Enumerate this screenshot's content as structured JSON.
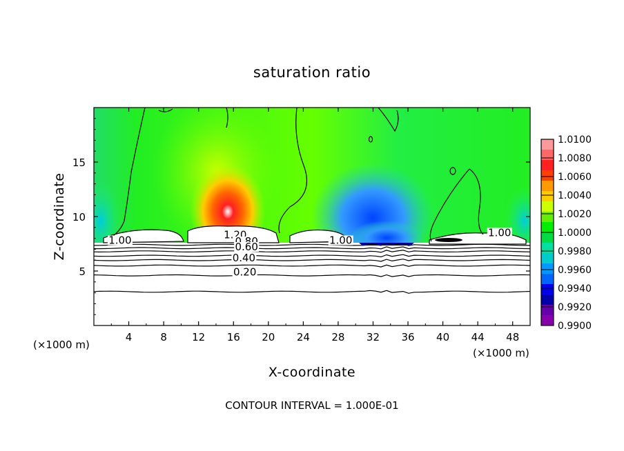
{
  "chart_data": {
    "type": "heatmap",
    "title": "saturation ratio",
    "xlabel": "X-coordinate",
    "ylabel": "Z-coordinate",
    "x_unit_left": "(×1000 m)",
    "x_unit_right": "(×1000 m)",
    "xlim": [
      0,
      50
    ],
    "ylim": [
      0,
      20
    ],
    "x_ticks": [
      4,
      8,
      12,
      16,
      20,
      24,
      28,
      32,
      36,
      40,
      44,
      48
    ],
    "y_ticks": [
      5,
      10,
      15
    ],
    "colorbar": {
      "levels": [
        "1.0100",
        "1.0080",
        "1.0060",
        "1.0040",
        "1.0020",
        "1.0000",
        "0.9980",
        "0.9960",
        "0.9940",
        "0.9920",
        "0.9900"
      ],
      "colors": [
        "#ff9999",
        "#ff6666",
        "#ff2020",
        "#ff4000",
        "#ff9900",
        "#ffcc00",
        "#ccff00",
        "#66ee00",
        "#00ee00",
        "#00dd44",
        "#00e0a0",
        "#00cccc",
        "#0099ff",
        "#0066ff",
        "#0000ee",
        "#0000aa",
        "#6600aa",
        "#8800aa"
      ]
    },
    "contour_labels": [
      {
        "text": "1.20",
        "x": 16.2,
        "z": 8.0
      },
      {
        "text": "0.80",
        "x": 17.5,
        "z": 7.4
      },
      {
        "text": "0.60",
        "x": 17.5,
        "z": 6.9
      },
      {
        "text": "0.40",
        "x": 17.2,
        "z": 5.9
      },
      {
        "text": "0.20",
        "x": 17.3,
        "z": 4.6
      },
      {
        "text": "1.00",
        "x": 3.0,
        "z": 7.5
      },
      {
        "text": "1.00",
        "x": 28.3,
        "z": 7.5
      },
      {
        "text": "1.00",
        "x": 46.5,
        "z": 8.2
      }
    ],
    "contour_levels_z": [
      3.1,
      4.6,
      5.5,
      6.0,
      6.4,
      6.8,
      7.1,
      7.4
    ],
    "grid": false,
    "legend": "right colorbar"
  },
  "footer": "CONTOUR INTERVAL = 1.000E-01"
}
